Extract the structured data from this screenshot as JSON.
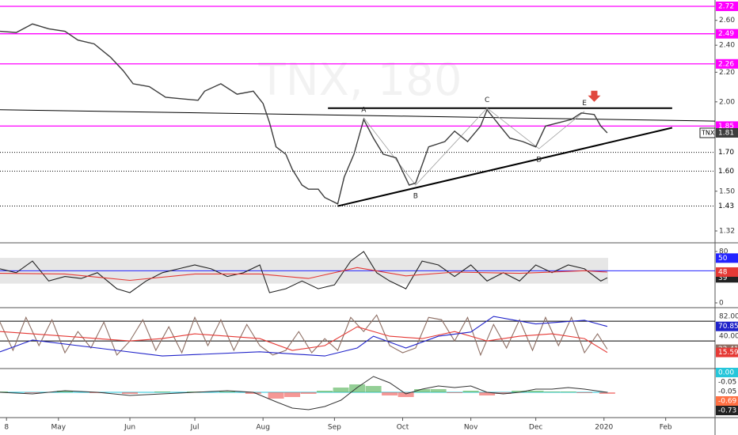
{
  "chart_data": [
    {
      "type": "line",
      "symbol": "TNX",
      "watermark": "TNX, 180",
      "log_scale": true,
      "xlim": [
        0,
        220.2
      ],
      "ylim": [
        1.277,
        2.776
      ],
      "xticks": [
        {
          "value": 2,
          "label": "8"
        },
        {
          "value": 18,
          "label": "May"
        },
        {
          "value": 40,
          "label": "Jun"
        },
        {
          "value": 60,
          "label": "Jul"
        },
        {
          "value": 81,
          "label": "Aug"
        },
        {
          "value": 103,
          "label": "Sep"
        },
        {
          "value": 124,
          "label": "Oct"
        },
        {
          "value": 145,
          "label": "Nov"
        },
        {
          "value": 165,
          "label": "Dec"
        },
        {
          "value": 186,
          "label": "2020"
        },
        {
          "value": 205,
          "label": "Feb"
        }
      ],
      "yticks": [
        1.32,
        {
          "value": 1.5,
          "label": "1.50"
        },
        {
          "value": 2.0,
          "label": "2.00"
        },
        {
          "value": 2.2,
          "label": "2.20"
        },
        {
          "value": 2.4,
          "label": "2.40"
        },
        {
          "value": 2.6,
          "label": "2.60"
        }
      ],
      "x": [
        0,
        5,
        10,
        15,
        20,
        24,
        29,
        34,
        38,
        41,
        46,
        51,
        56,
        61,
        63,
        68,
        73,
        78,
        81,
        83,
        85,
        88,
        90,
        93,
        95,
        98,
        100,
        104,
        106,
        109,
        112,
        115,
        118,
        122,
        126,
        128,
        132,
        137,
        140,
        144,
        148,
        150,
        154,
        157,
        161,
        165,
        168,
        172,
        176,
        179,
        183,
        185,
        187
      ],
      "series": [
        {
          "color": "#3d3d3d",
          "values": [
            2.51,
            2.5,
            2.57,
            2.53,
            2.51,
            2.44,
            2.41,
            2.31,
            2.21,
            2.12,
            2.1,
            2.03,
            2.02,
            2.01,
            2.07,
            2.12,
            2.05,
            2.07,
            1.99,
            1.87,
            1.73,
            1.69,
            1.61,
            1.53,
            1.51,
            1.51,
            1.47,
            1.44,
            1.57,
            1.69,
            1.89,
            1.78,
            1.69,
            1.67,
            1.53,
            1.54,
            1.73,
            1.76,
            1.82,
            1.76,
            1.85,
            1.95,
            1.85,
            1.78,
            1.76,
            1.73,
            1.85,
            1.87,
            1.89,
            1.93,
            1.92,
            1.85,
            1.81
          ]
        }
      ],
      "levels": [
        {
          "value": 2.72,
          "label": "2.72",
          "color": "#ff00ff",
          "style": "solid"
        },
        {
          "value": 2.49,
          "label": "2.49",
          "color": "#ff00ff",
          "style": "solid"
        },
        {
          "value": 2.26,
          "label": "2.26",
          "color": "#ff00ff",
          "style": "solid"
        },
        {
          "value": 1.85,
          "label": "1.85",
          "color": "#ff00ff",
          "style": "solid"
        },
        {
          "value": 1.7,
          "label": "1.70",
          "color": "#000000",
          "style": "dotted"
        },
        {
          "value": 1.6,
          "label": "1.60",
          "color": "#000000",
          "style": "dotted"
        },
        {
          "value": 1.43,
          "label": "1.43",
          "color": "#000000",
          "style": "dotted"
        }
      ],
      "trendlines": [
        {
          "x": [
            0,
            220.2
          ],
          "y": [
            1.95,
            1.88
          ],
          "width": 1
        },
        {
          "x": [
            101,
            207
          ],
          "y": [
            1.96,
            1.96
          ],
          "width": 2
        },
        {
          "x": [
            104,
            207
          ],
          "y": [
            1.43,
            1.84
          ],
          "width": 2
        }
      ],
      "pattern": {
        "x": [
          112,
          128,
          150,
          166,
          180
        ],
        "values": [
          1.9,
          1.53,
          1.96,
          1.72,
          1.94
        ],
        "labels": [
          "A",
          "B",
          "C",
          "D",
          "E"
        ]
      },
      "signal": {
        "x": 183,
        "value": 2.0,
        "color": "#e0483e"
      }
    },
    {
      "type": "line",
      "ylim": [
        -6.2,
        89.8
      ],
      "yticks": [
        0,
        80
      ],
      "band": [
        30,
        70
      ],
      "baseline": {
        "value": 50,
        "color": "#2323ff"
      },
      "series": [
        {
          "color": "#222222",
          "x": [
            0,
            5,
            10,
            15,
            20,
            25,
            30,
            36,
            40,
            45,
            50,
            55,
            60,
            65,
            70,
            75,
            80,
            83,
            88,
            93,
            98,
            103,
            108,
            112,
            116,
            120,
            125,
            130,
            135,
            140,
            145,
            150,
            155,
            160,
            165,
            170,
            175,
            180,
            185,
            187
          ],
          "values": [
            53,
            47,
            65,
            34,
            41,
            38,
            47,
            22,
            16,
            34,
            47,
            53,
            59,
            53,
            41,
            47,
            59,
            16,
            22,
            34,
            22,
            28,
            65,
            80,
            47,
            34,
            22,
            65,
            59,
            41,
            59,
            34,
            47,
            34,
            59,
            47,
            59,
            53,
            34,
            39
          ]
        },
        {
          "color": "#e53935",
          "x": [
            0,
            20,
            40,
            60,
            80,
            95,
            110,
            125,
            140,
            160,
            180,
            187
          ],
          "values": [
            46,
            45,
            35,
            45,
            45,
            38,
            55,
            42,
            48,
            46,
            50,
            48
          ]
        }
      ]
    },
    {
      "type": "line",
      "ylim": [
        -17,
        109
      ],
      "levels": [
        {
          "value": 82,
          "label": "82.00"
        },
        {
          "value": 40,
          "label": "40.00"
        }
      ],
      "series": [
        {
          "color": "#8d6e63",
          "x": [
            0,
            4,
            8,
            12,
            16,
            20,
            24,
            28,
            32,
            36,
            40,
            44,
            48,
            52,
            56,
            60,
            64,
            68,
            72,
            76,
            80,
            84,
            88,
            92,
            96,
            100,
            104,
            108,
            112,
            116,
            120,
            124,
            128,
            132,
            136,
            140,
            144,
            148,
            152,
            156,
            160,
            164,
            168,
            172,
            176,
            180,
            184,
            187
          ],
          "values": [
            80,
            20,
            90,
            30,
            85,
            15,
            60,
            25,
            80,
            10,
            40,
            85,
            20,
            70,
            15,
            90,
            30,
            85,
            20,
            75,
            30,
            10,
            20,
            60,
            15,
            45,
            20,
            90,
            60,
            95,
            30,
            15,
            25,
            90,
            85,
            40,
            90,
            10,
            75,
            25,
            85,
            20,
            90,
            30,
            90,
            15,
            55,
            22.41
          ]
        },
        {
          "color": "#e53935",
          "x": [
            0,
            10,
            20,
            30,
            40,
            50,
            60,
            70,
            80,
            90,
            100,
            110,
            120,
            130,
            140,
            150,
            160,
            170,
            180,
            187
          ],
          "values": [
            60,
            55,
            50,
            45,
            40,
            45,
            55,
            50,
            45,
            20,
            30,
            70,
            50,
            45,
            60,
            40,
            50,
            55,
            45,
            15.59
          ]
        },
        {
          "color": "#1f22c9",
          "x": [
            0,
            10,
            30,
            50,
            80,
            100,
            110,
            115,
            125,
            135,
            145,
            152,
            165,
            180,
            187
          ],
          "values": [
            17,
            42,
            25,
            8,
            17,
            8,
            25,
            50,
            25,
            50,
            59,
            92,
            76,
            84,
            70.85
          ]
        }
      ]
    },
    {
      "type": "macd",
      "ylim": [
        -0.15,
        0.14
      ],
      "zero_color": "#26c6da",
      "line_color": "#333333",
      "up_color": "#4caf50",
      "down_color": "#ef5350",
      "x": [
        0,
        10,
        20,
        30,
        40,
        50,
        60,
        70,
        78,
        85,
        90,
        95,
        100,
        105,
        110,
        115,
        120,
        125,
        130,
        135,
        140,
        145,
        150,
        155,
        160,
        165,
        170,
        175,
        180,
        187
      ],
      "values": [
        0,
        -0.01,
        0.01,
        0,
        -0.02,
        -0.01,
        0,
        0.01,
        0,
        -0.06,
        -0.1,
        -0.11,
        -0.09,
        -0.05,
        0.03,
        0.1,
        0.06,
        -0.01,
        0.02,
        0.04,
        0.03,
        0.04,
        0,
        -0.01,
        0,
        0.02,
        0.02,
        0.03,
        0.02,
        0
      ],
      "histogram": [
        0.005,
        -0.005,
        0.01,
        -0.005,
        -0.01,
        0.005,
        0.005,
        0.005,
        -0.01,
        -0.04,
        -0.03,
        -0.01,
        0.01,
        0.03,
        0.05,
        0.04,
        -0.02,
        -0.03,
        0.02,
        0.02,
        -0.005,
        0.01,
        -0.02,
        -0.01,
        0.01,
        0.01,
        0.005,
        0.005,
        -0.005,
        -0.01
      ],
      "tags": [
        {
          "label": "0.00",
          "color": "#26c6da"
        },
        {
          "label": "-0.05",
          "color": "#ffffff"
        },
        {
          "label": "-0.05",
          "color": "#ffffff"
        },
        {
          "label": "-0.69",
          "color": "#ff7043"
        },
        {
          "label": "-0.73",
          "color": "#222222"
        }
      ]
    }
  ]
}
